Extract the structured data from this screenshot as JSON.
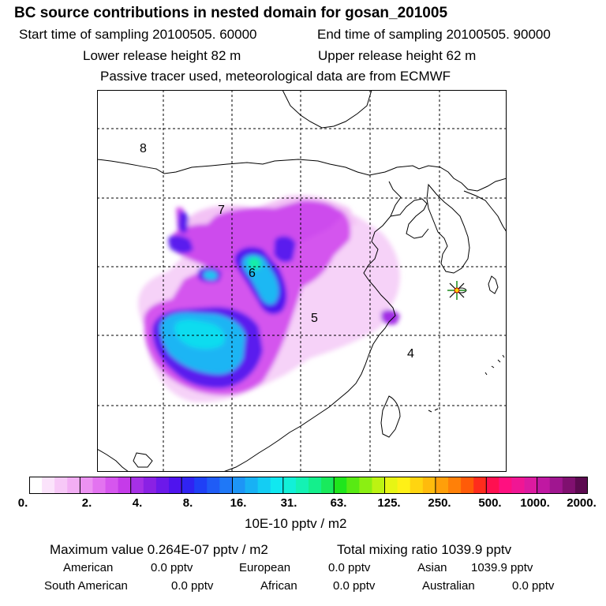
{
  "header": {
    "title": "BC  source contributions in nested domain for gosan_201005",
    "start_time": "Start time of sampling 20100505. 60000",
    "end_time": "End time of sampling 20100505. 90000",
    "lower_release": "Lower release height   82 m",
    "upper_release": "Upper release height   62 m",
    "tracer_note": "Passive tracer used, meteorological data are from ECMWF"
  },
  "map": {
    "region_labels": [
      "8",
      "7",
      "6",
      "5",
      "4"
    ],
    "receptor_marker": "star-cross"
  },
  "colorbar": {
    "tick_labels": [
      "0.",
      "2.",
      "4.",
      "8.",
      "16.",
      "31.",
      "63.",
      "125.",
      "250.",
      "500.",
      "1000.",
      "2000."
    ],
    "colors": [
      "#ffffff",
      "#fbe3fb",
      "#f7c8f7",
      "#f2aef4",
      "#ec92f2",
      "#e373f0",
      "#d656ee",
      "#c53be9",
      "#a630e6",
      "#8a21e4",
      "#6c19ea",
      "#4f14ee",
      "#3023f2",
      "#1f40f6",
      "#1f5cf6",
      "#1f78f7",
      "#1d95f6",
      "#18b1f4",
      "#14cdf3",
      "#10e8f0",
      "#12f0d8",
      "#14f2b4",
      "#14ef8c",
      "#19ea5c",
      "#1fe61c",
      "#58ea13",
      "#8bef12",
      "#bcf312",
      "#e7f514",
      "#fff016",
      "#ffd510",
      "#ffbb0c",
      "#ff9f0a",
      "#ff8008",
      "#ff5b08",
      "#ff2c1c",
      "#ff1050",
      "#ff1080",
      "#f01694",
      "#dc1aa0",
      "#c018a2",
      "#a01690",
      "#801070",
      "#5c0a50"
    ],
    "unit": "10E-10 pptv / m2"
  },
  "summary": {
    "max_value": "Maximum value  0.264E-07 pptv / m2",
    "total_mixing": "Total mixing ratio     1039.9 pptv",
    "american_label": "American",
    "american_value": "0.0 pptv",
    "european_label": "European",
    "european_value": "0.0 pptv",
    "asian_label": "Asian",
    "asian_value": "1039.9 pptv",
    "south_american_label": "South American",
    "south_american_value": "0.0 pptv",
    "african_label": "African",
    "african_value": "0.0 pptv",
    "australian_label": "Australian",
    "australian_value": "0.0 pptv"
  }
}
